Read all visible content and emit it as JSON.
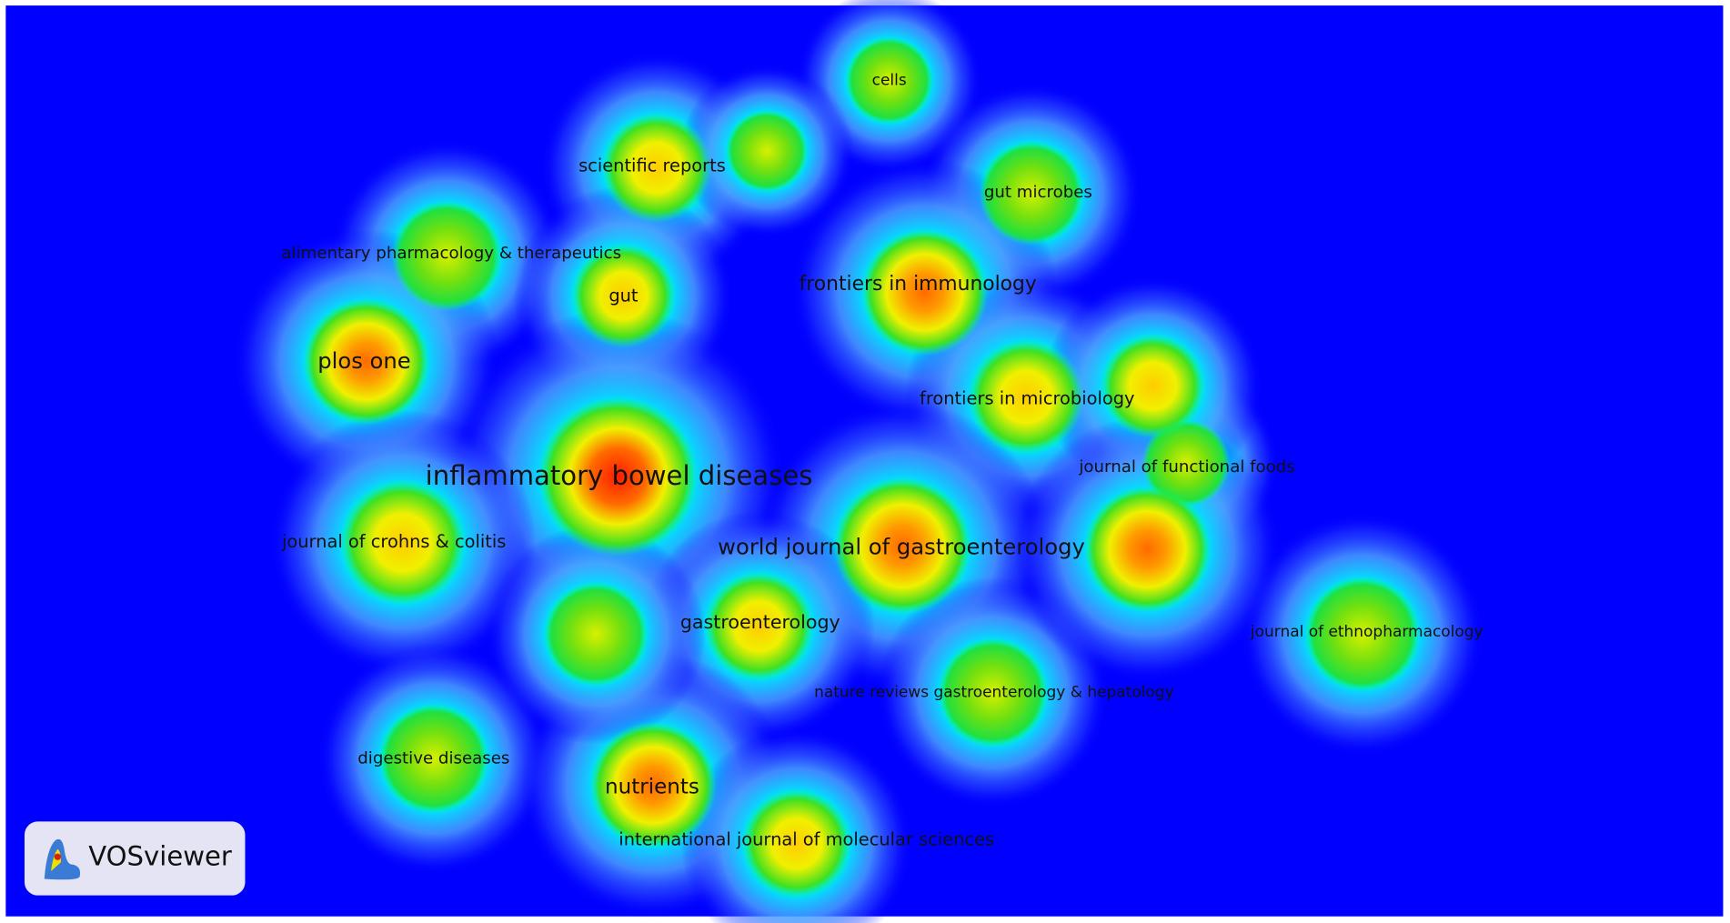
{
  "nodes": [
    {
      "label": "cells"
    },
    {
      "label": "scientific reports"
    },
    {
      "label": "gut microbes"
    },
    {
      "label": "alimentary pharmacology & therapeutics"
    },
    {
      "label": "gut"
    },
    {
      "label": "frontiers in immunology"
    },
    {
      "label": "plos one"
    },
    {
      "label": "frontiers in microbiology"
    },
    {
      "label": "journal of functional foods"
    },
    {
      "label": "inflammatory bowel diseases"
    },
    {
      "label": "journal of crohns & colitis"
    },
    {
      "label": "world journal of gastroenterology"
    },
    {
      "label": "gastroenterology"
    },
    {
      "label": "journal of ethnopharmacology"
    },
    {
      "label": "nature reviews gastroenterology & hepatology"
    },
    {
      "label": "digestive diseases"
    },
    {
      "label": "nutrients"
    },
    {
      "label": "international journal of molecular sciences"
    }
  ],
  "logo": "VOSviewer"
}
